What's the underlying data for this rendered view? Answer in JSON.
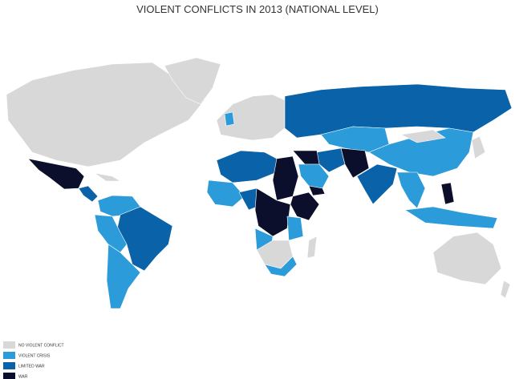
{
  "title": "VIOLENT CONFLICTS IN 2013 (NATIONAL LEVEL)",
  "legend": [
    {
      "label": "NO VIOLENT CONFLICT",
      "color": "#d8d8d8"
    },
    {
      "label": "VIOLENT CRISIS",
      "color": "#2b9bd9"
    },
    {
      "label": "LIMITED WAR",
      "color": "#0a63a9"
    },
    {
      "label": "WAR",
      "color": "#0b0f2b"
    }
  ]
}
